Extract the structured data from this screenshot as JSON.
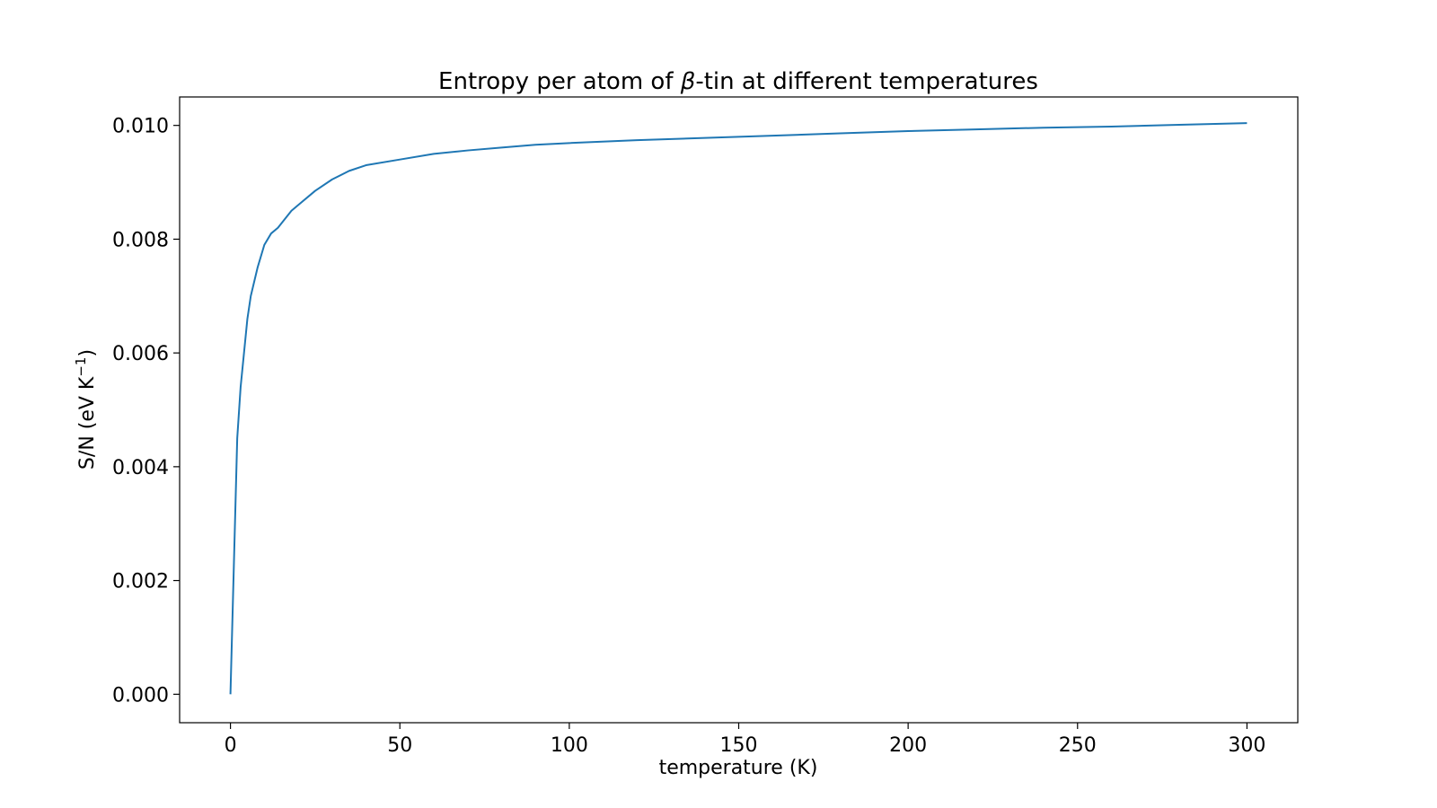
{
  "chart_data": {
    "type": "line",
    "title_prefix": "Entropy per atom of ",
    "title_symbol": "β",
    "title_suffix": "-tin at different temperatures",
    "xlabel": "temperature (K)",
    "ylabel_main": "S/N (eV K",
    "ylabel_sup": "−1",
    "ylabel_close": ")",
    "xlim": [
      -15,
      315
    ],
    "ylim": [
      -0.0005,
      0.0105
    ],
    "xticks": [
      {
        "value": 0,
        "label": "0"
      },
      {
        "value": 50,
        "label": "50"
      },
      {
        "value": 100,
        "label": "100"
      },
      {
        "value": 150,
        "label": "150"
      },
      {
        "value": 200,
        "label": "200"
      },
      {
        "value": 250,
        "label": "250"
      },
      {
        "value": 300,
        "label": "300"
      }
    ],
    "yticks": [
      {
        "value": 0.0,
        "label": "0.000"
      },
      {
        "value": 0.002,
        "label": "0.002"
      },
      {
        "value": 0.004,
        "label": "0.004"
      },
      {
        "value": 0.006,
        "label": "0.006"
      },
      {
        "value": 0.008,
        "label": "0.008"
      },
      {
        "value": 0.01,
        "label": "0.010"
      }
    ],
    "grid": false,
    "series": [
      {
        "color": "#1f77b4",
        "x": [
          0,
          1,
          2,
          3,
          4,
          5,
          6,
          8,
          10,
          12,
          14,
          16,
          18,
          20,
          25,
          30,
          35,
          40,
          50,
          60,
          70,
          80,
          90,
          100,
          120,
          140,
          160,
          180,
          200,
          220,
          240,
          260,
          280,
          300
        ],
        "y": [
          0.0,
          0.00225,
          0.0045,
          0.0054,
          0.006,
          0.0066,
          0.007,
          0.0075,
          0.0079,
          0.0081,
          0.0082,
          0.00835,
          0.0085,
          0.0086,
          0.00885,
          0.00905,
          0.0092,
          0.0093,
          0.0094,
          0.0095,
          0.00956,
          0.00961,
          0.00966,
          0.00969,
          0.00974,
          0.00978,
          0.00982,
          0.00986,
          0.0099,
          0.00993,
          0.00996,
          0.00998,
          0.01001,
          0.01004
        ]
      }
    ]
  }
}
